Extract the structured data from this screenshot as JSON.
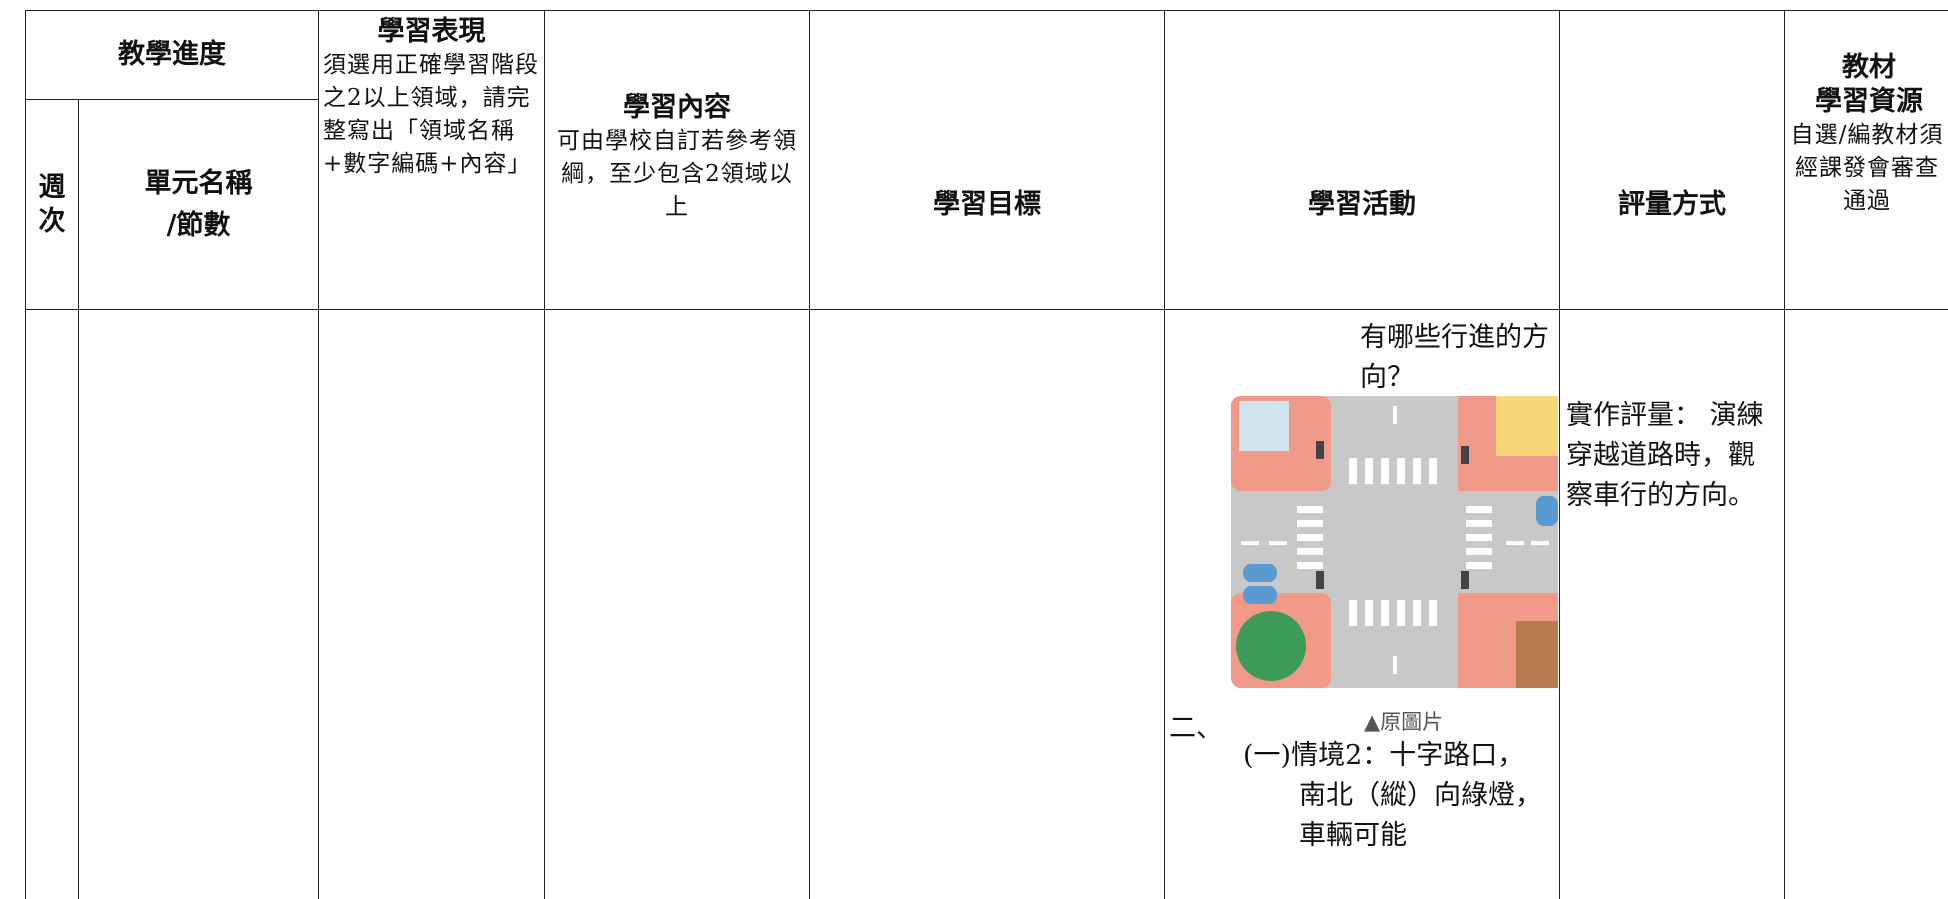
{
  "table": {
    "header": {
      "progress": "教學進度",
      "week": "週次",
      "unit": [
        "單元名稱",
        "/節數"
      ],
      "performance": {
        "title": "學習表現",
        "note": "須選用正確學習階段之2以上領域，請完整寫出「領域名稱+數字編碼+內容」"
      },
      "content": {
        "title": "學習內容",
        "note": "可由學校自訂若參考領綱，至少包含2領域以上"
      },
      "objective": "學習目標",
      "activity": "學習活動",
      "assessment": "評量方式",
      "materials": {
        "title": "教材",
        "subtitle": "學習資源",
        "note": "自選/編教材須經課發會審查通過"
      }
    },
    "body": {
      "activity": {
        "question": "有哪些行進的方向？",
        "caption": "▲原圖片",
        "item": "二、",
        "subitem": "(一)情境2：十字路口，南北（縱）向綠燈，車輛可能"
      },
      "assessment": "實作評量： 演練穿越道路時，觀察車行的方向。"
    }
  }
}
